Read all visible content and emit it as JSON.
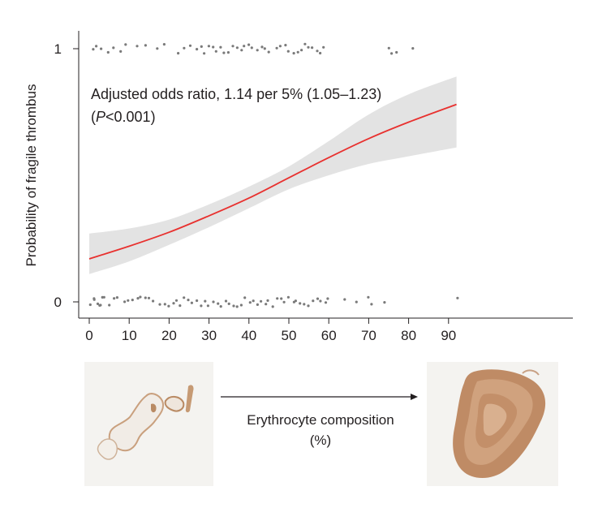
{
  "chart_data": {
    "type": "line",
    "title": "",
    "ylabel": "Probability of fragile thrombus",
    "xlabel": "Erythrocyte composition (%)",
    "xlim": [
      0,
      95
    ],
    "ylim": [
      0,
      1
    ],
    "x_ticks": [
      "0",
      "10",
      "20",
      "30",
      "40",
      "50",
      "60",
      "70",
      "80",
      "90"
    ],
    "y_ticks": [
      "0",
      "1"
    ],
    "annotation_line1": "Adjusted odds ratio, 1.14 per 5% (1.05–1.23)",
    "annotation_line2_prefix": "(",
    "annotation_line2_italic": "P",
    "annotation_line2_suffix": "<0.001)",
    "series": [
      {
        "kind": "fit",
        "x": [
          0,
          10,
          20,
          30,
          40,
          50,
          60,
          70,
          80,
          92
        ],
        "y": [
          0.17,
          0.22,
          0.275,
          0.34,
          0.41,
          0.49,
          0.57,
          0.645,
          0.71,
          0.78
        ],
        "color": "#e8312f"
      },
      {
        "kind": "ci95",
        "x": [
          0,
          10,
          20,
          30,
          40,
          50,
          60,
          70,
          80,
          92
        ],
        "lower": [
          0.11,
          0.16,
          0.225,
          0.295,
          0.37,
          0.445,
          0.5,
          0.545,
          0.575,
          0.61
        ],
        "upper": [
          0.27,
          0.29,
          0.325,
          0.385,
          0.455,
          0.535,
          0.635,
          0.74,
          0.82,
          0.89
        ],
        "color": "#e3e3e3"
      },
      {
        "kind": "observations",
        "outcome": 1,
        "x": [
          1,
          2,
          3,
          5,
          6,
          8,
          9,
          12,
          14,
          17,
          19,
          22,
          24,
          25,
          27,
          28,
          29,
          30,
          31,
          32,
          33,
          34,
          35,
          36,
          37,
          38,
          39,
          40,
          41,
          42,
          43,
          44,
          45,
          47,
          48,
          49,
          50,
          51,
          52,
          53,
          54,
          55,
          56,
          57,
          58,
          59,
          75,
          76,
          77,
          81
        ],
        "color": "#7a7a7a"
      },
      {
        "kind": "observations",
        "outcome": 0,
        "x": [
          0.5,
          1,
          1.5,
          2,
          2.5,
          3,
          3.5,
          4,
          5,
          6,
          7,
          9,
          10,
          11,
          12,
          13,
          14,
          15,
          16,
          18,
          19,
          20,
          21,
          22,
          23,
          24,
          25,
          26,
          27,
          28,
          29,
          30,
          31,
          32,
          33,
          34,
          35,
          36,
          37,
          38,
          39,
          40,
          41,
          42,
          43,
          44,
          45,
          46,
          47,
          48,
          49,
          50,
          51,
          52,
          53,
          54,
          55,
          56,
          57,
          58,
          59,
          60,
          64,
          67,
          70,
          71,
          74,
          92
        ],
        "color": "#7a7a7a"
      }
    ]
  },
  "colors": {
    "fit_line": "#e8312f",
    "ci_band": "#e3e3e3",
    "points": "#7a7a7a",
    "axis": "#231f20",
    "stain": "#b98a63"
  }
}
